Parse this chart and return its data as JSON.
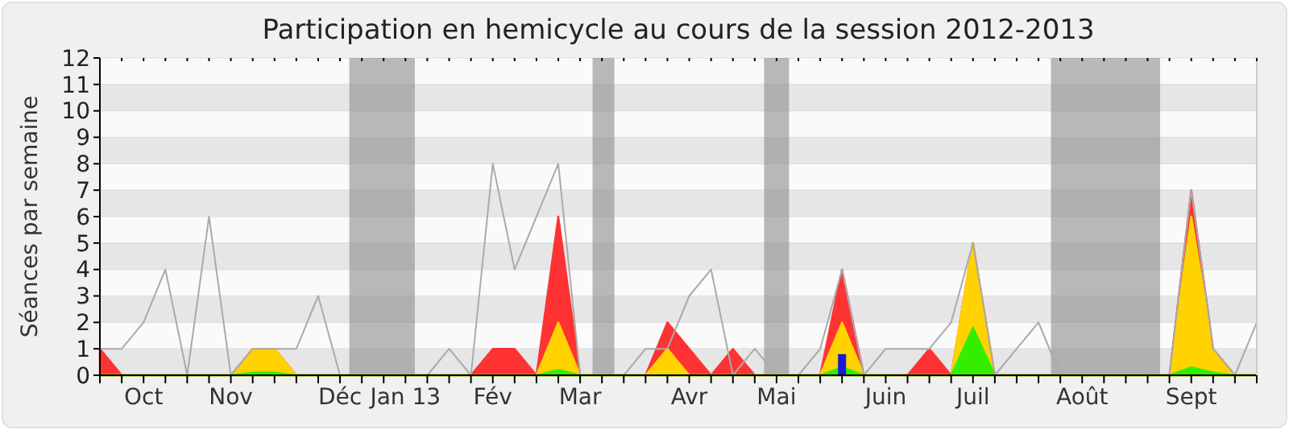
{
  "chart_data": {
    "type": "area",
    "title": "Participation en hemicycle au cours de la session 2012-2013",
    "ylabel": "Séances par semaine",
    "x": [
      "2012-10-01",
      "2012-10-08",
      "2012-10-15",
      "2012-10-22",
      "2012-10-29",
      "2012-11-05",
      "2012-11-12",
      "2012-11-19",
      "2012-11-26",
      "2012-12-03",
      "2012-12-10",
      "2012-12-17",
      "2012-12-24",
      "2012-12-31",
      "2013-01-07",
      "2013-01-14",
      "2013-01-21",
      "2013-01-28",
      "2013-02-04",
      "2013-02-11",
      "2013-02-18",
      "2013-02-25",
      "2013-03-04",
      "2013-03-11",
      "2013-03-18",
      "2013-03-25",
      "2013-04-01",
      "2013-04-08",
      "2013-04-15",
      "2013-04-22",
      "2013-04-29",
      "2013-05-06",
      "2013-05-13",
      "2013-05-20",
      "2013-05-27",
      "2013-06-03",
      "2013-06-10",
      "2013-06-17",
      "2013-06-24",
      "2013-07-01",
      "2013-07-08",
      "2013-07-15",
      "2013-07-22",
      "2013-07-29",
      "2013-08-05",
      "2013-08-12",
      "2013-08-19",
      "2013-08-26",
      "2013-09-02",
      "2013-09-09",
      "2013-09-16",
      "2013-09-23",
      "2013-09-30",
      "2013-10-07"
    ],
    "xlim": [
      "2012-10-01",
      "2013-10-07"
    ],
    "xticks": [
      {
        "value": "2012-10-01",
        "label": null
      },
      {
        "value": "2012-10-08",
        "label": null
      },
      {
        "value": "2012-10-15",
        "label": "Oct"
      },
      {
        "value": "2012-10-22",
        "label": null
      },
      {
        "value": "2012-10-29",
        "label": null
      },
      {
        "value": "2012-11-05",
        "label": null
      },
      {
        "value": "2012-11-12",
        "label": "Nov"
      },
      {
        "value": "2012-11-19",
        "label": null
      },
      {
        "value": "2012-11-26",
        "label": null
      },
      {
        "value": "2012-12-03",
        "label": null
      },
      {
        "value": "2012-12-10",
        "label": null
      },
      {
        "value": "2012-12-17",
        "label": "Déc"
      },
      {
        "value": "2012-12-24",
        "label": null
      },
      {
        "value": "2012-12-31",
        "label": null
      },
      {
        "value": "2013-01-07",
        "label": "Jan 13"
      },
      {
        "value": "2013-01-14",
        "label": null
      },
      {
        "value": "2013-01-21",
        "label": null
      },
      {
        "value": "2013-01-28",
        "label": null
      },
      {
        "value": "2013-02-04",
        "label": "Fév"
      },
      {
        "value": "2013-02-11",
        "label": null
      },
      {
        "value": "2013-02-18",
        "label": null
      },
      {
        "value": "2013-02-25",
        "label": null
      },
      {
        "value": "2013-03-04",
        "label": "Mar"
      },
      {
        "value": "2013-03-11",
        "label": null
      },
      {
        "value": "2013-03-18",
        "label": null
      },
      {
        "value": "2013-03-25",
        "label": null
      },
      {
        "value": "2013-04-01",
        "label": null
      },
      {
        "value": "2013-04-08",
        "label": "Avr"
      },
      {
        "value": "2013-04-15",
        "label": null
      },
      {
        "value": "2013-04-22",
        "label": null
      },
      {
        "value": "2013-04-29",
        "label": null
      },
      {
        "value": "2013-05-06",
        "label": "Mai"
      },
      {
        "value": "2013-05-13",
        "label": null
      },
      {
        "value": "2013-05-20",
        "label": null
      },
      {
        "value": "2013-05-27",
        "label": null
      },
      {
        "value": "2013-06-03",
        "label": null
      },
      {
        "value": "2013-06-10",
        "label": "Juin"
      },
      {
        "value": "2013-06-17",
        "label": null
      },
      {
        "value": "2013-06-24",
        "label": null
      },
      {
        "value": "2013-07-01",
        "label": null
      },
      {
        "value": "2013-07-08",
        "label": "Juil"
      },
      {
        "value": "2013-07-15",
        "label": null
      },
      {
        "value": "2013-07-22",
        "label": null
      },
      {
        "value": "2013-07-29",
        "label": null
      },
      {
        "value": "2013-08-05",
        "label": null
      },
      {
        "value": "2013-08-12",
        "label": "Août"
      },
      {
        "value": "2013-08-19",
        "label": null
      },
      {
        "value": "2013-08-26",
        "label": null
      },
      {
        "value": "2013-09-02",
        "label": null
      },
      {
        "value": "2013-09-09",
        "label": null
      },
      {
        "value": "2013-09-16",
        "label": "Sept"
      },
      {
        "value": "2013-09-23",
        "label": null
      },
      {
        "value": "2013-09-30",
        "label": null
      },
      {
        "value": "2013-10-07",
        "label": null
      }
    ],
    "ylim": [
      0,
      12
    ],
    "yticks": [
      0,
      1,
      2,
      3,
      4,
      5,
      6,
      7,
      8,
      9,
      10,
      11,
      12
    ],
    "grid": "y",
    "bands": [
      {
        "axis": "x",
        "from": "2012-12-20",
        "to": "2013-01-10",
        "color": "#8c8c8c"
      },
      {
        "axis": "x",
        "from": "2013-03-08",
        "to": "2013-03-15",
        "color": "#8c8c8c"
      },
      {
        "axis": "x",
        "from": "2013-05-02",
        "to": "2013-05-10",
        "color": "#8c8c8c"
      },
      {
        "axis": "x",
        "from": "2013-08-02",
        "to": "2013-09-06",
        "color": "#8c8c8c"
      }
    ],
    "series": [
      {
        "type": "line",
        "color": "#aaaaaa",
        "values": [
          1,
          1,
          2,
          4,
          0,
          6,
          0,
          1,
          1,
          1,
          3,
          0,
          0,
          0,
          0,
          0,
          1,
          0,
          8,
          4,
          6,
          8,
          0,
          0,
          0,
          1,
          1,
          3,
          4,
          0,
          1,
          0,
          0,
          1,
          4,
          0,
          1,
          1,
          1,
          2,
          5,
          0,
          1,
          2,
          0,
          0,
          0,
          0,
          0,
          0,
          7,
          1,
          0,
          2
        ]
      },
      {
        "color": "#ff3333",
        "values": [
          1,
          0,
          0,
          0,
          0,
          0,
          0,
          1,
          1,
          0,
          0,
          0,
          0,
          0,
          0,
          0,
          0,
          0,
          1,
          1,
          0,
          6,
          0,
          0,
          0,
          0,
          2,
          1,
          0,
          1,
          0,
          0,
          0,
          0,
          4,
          0,
          0,
          0,
          1,
          0,
          5,
          0,
          0,
          0,
          0,
          0,
          0,
          0,
          0,
          0,
          7,
          1,
          0,
          0
        ]
      },
      {
        "color": "#ffd200",
        "values": [
          0,
          0,
          0,
          0,
          0,
          0,
          0,
          1,
          1,
          0,
          0,
          0,
          0,
          0,
          0,
          0,
          0,
          0,
          0,
          0,
          0,
          2,
          0,
          0,
          0,
          0,
          1,
          0,
          0,
          0,
          0,
          0,
          0,
          0,
          2,
          0,
          0,
          0,
          0,
          0,
          5,
          0,
          0,
          0,
          0,
          0,
          0,
          0,
          0,
          0,
          6,
          1,
          0,
          0
        ]
      },
      {
        "color": "#33ee00",
        "values": [
          0,
          0,
          0,
          0,
          0,
          0,
          0,
          0.1,
          0.1,
          0,
          0,
          0,
          0,
          0,
          0,
          0,
          0,
          0,
          0,
          0,
          0,
          0.2,
          0,
          0,
          0,
          0,
          0,
          0,
          0,
          0,
          0,
          0,
          0,
          0,
          0.3,
          0,
          0,
          0,
          0,
          0,
          1.8,
          0,
          0,
          0,
          0,
          0,
          0,
          0,
          0,
          0,
          0.3,
          0.1,
          0,
          0
        ]
      },
      {
        "type": "bar",
        "color": "#1a1ad6",
        "values": [
          null,
          null,
          null,
          null,
          null,
          null,
          null,
          null,
          null,
          null,
          null,
          null,
          null,
          null,
          null,
          null,
          null,
          null,
          null,
          null,
          null,
          null,
          null,
          null,
          null,
          null,
          null,
          null,
          null,
          null,
          null,
          null,
          null,
          null,
          0.8,
          null,
          null,
          null,
          null,
          null,
          null,
          null,
          null,
          null,
          null,
          null,
          null,
          null,
          null,
          null,
          null,
          null,
          null,
          null
        ]
      }
    ]
  }
}
